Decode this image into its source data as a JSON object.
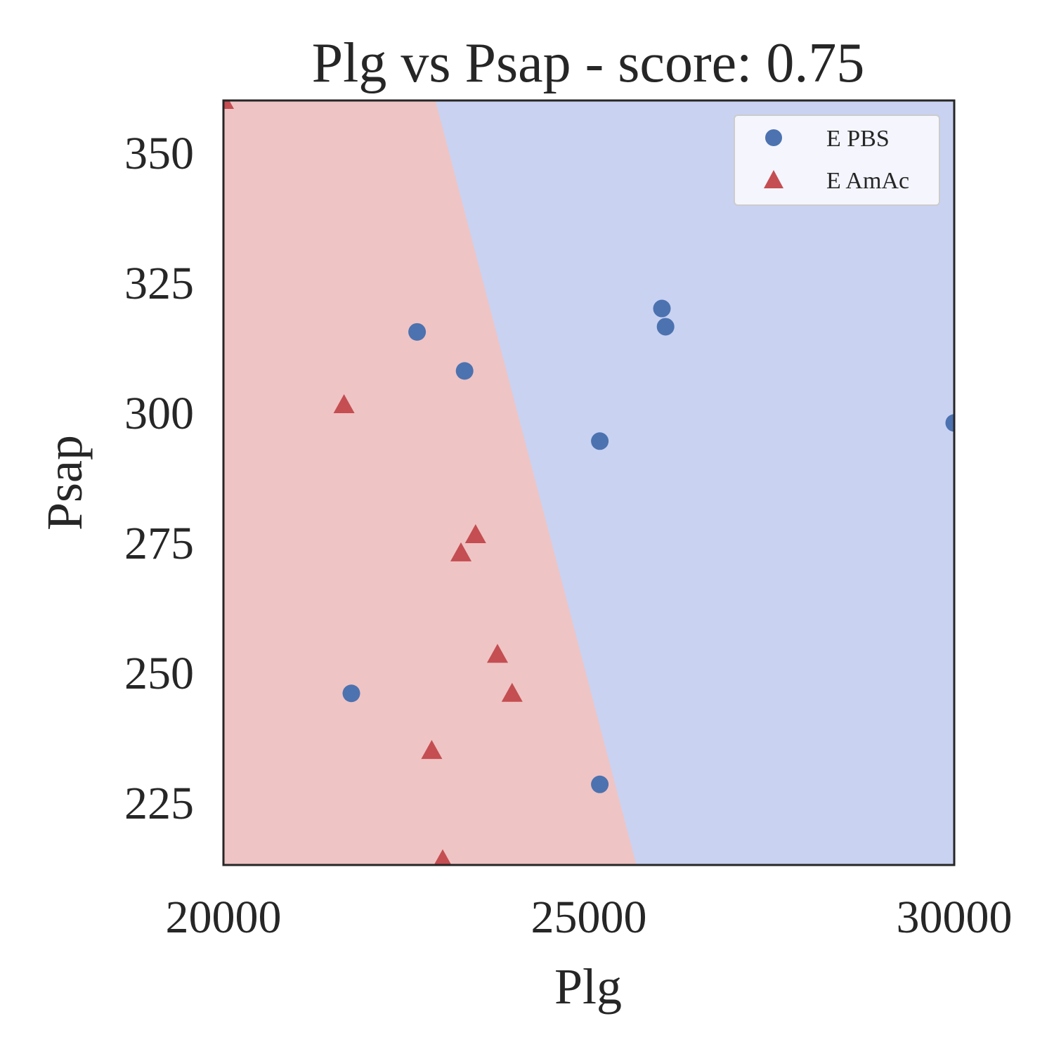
{
  "chart_data": {
    "type": "scatter",
    "title": "Plg vs Psap - score: 0.75",
    "xlabel": "Plg",
    "ylabel": "Psap",
    "xlim": [
      20000,
      30000
    ],
    "ylim": [
      213,
      360
    ],
    "x_ticks": [
      20000,
      25000,
      30000
    ],
    "y_ticks": [
      225,
      250,
      275,
      300,
      325,
      350
    ],
    "grid": false,
    "legend_position": "top-right",
    "decision_regions": {
      "boundary": [
        [
          22900,
          360
        ],
        [
          25650,
          213
        ]
      ],
      "left_region": "E AmAc",
      "right_region": "E PBS",
      "left_color": "#efc4c4",
      "right_color": "#c9d2f1"
    },
    "series": [
      {
        "name": "E PBS",
        "marker": "circle",
        "color": "#4c72b0",
        "points": [
          [
            22650,
            315.5
          ],
          [
            23300,
            308
          ],
          [
            25150,
            294.5
          ],
          [
            26000,
            320
          ],
          [
            26050,
            316.5
          ],
          [
            30000,
            298
          ],
          [
            21750,
            246
          ],
          [
            25150,
            228.5
          ]
        ]
      },
      {
        "name": "E AmAc",
        "marker": "triangle",
        "color": "#c44e52",
        "points": [
          [
            20000,
            360
          ],
          [
            21650,
            301.5
          ],
          [
            23450,
            276.5
          ],
          [
            23250,
            273
          ],
          [
            23750,
            253.5
          ],
          [
            23950,
            246
          ],
          [
            22850,
            235
          ],
          [
            23000,
            214
          ]
        ]
      }
    ]
  }
}
